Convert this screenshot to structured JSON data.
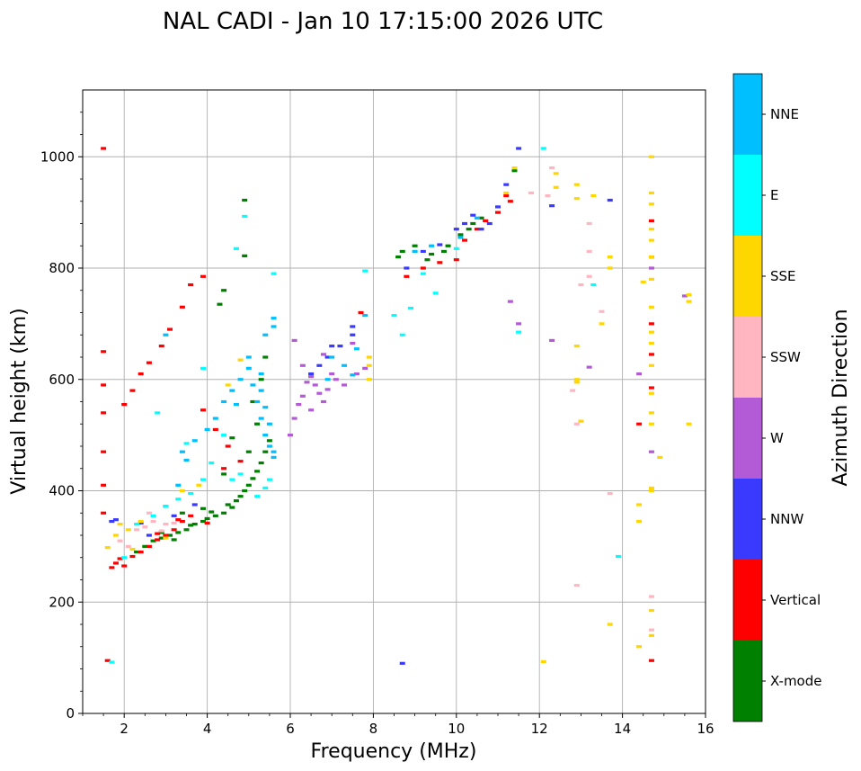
{
  "chart_data": {
    "type": "scatter",
    "title": "NAL CADI - Jan 10 17:15:00 2026 UTC",
    "xlabel": "Frequency (MHz)",
    "ylabel": "Virtual height (km)",
    "xlim": [
      1,
      16
    ],
    "ylim": [
      0,
      1120
    ],
    "xticks": [
      2,
      4,
      6,
      8,
      10,
      12,
      14,
      16
    ],
    "xtick_labels": [
      "2",
      "4",
      "6",
      "8",
      "10",
      "12",
      "14",
      "16"
    ],
    "yticks": [
      0,
      200,
      400,
      600,
      800,
      1000
    ],
    "ytick_labels": [
      "0",
      "200",
      "400",
      "600",
      "800",
      "1000"
    ],
    "grid": true,
    "colorbar": {
      "label": "Azimuth Direction",
      "categories": [
        "X-mode",
        "Vertical",
        "NNW",
        "W",
        "SSW",
        "SSE",
        "E",
        "NNE"
      ],
      "colors": [
        "#008000",
        "#ff0000",
        "#3a3aff",
        "#b35bd6",
        "#ffb6c1",
        "#ffd700",
        "#00ffff",
        "#00bfff"
      ]
    },
    "series": [
      {
        "name": "X-mode",
        "points": [
          [
            2.3,
            290
          ],
          [
            2.5,
            300
          ],
          [
            2.7,
            310
          ],
          [
            2.9,
            315
          ],
          [
            3.1,
            320
          ],
          [
            3.3,
            325
          ],
          [
            3.5,
            330
          ],
          [
            3.6,
            338
          ],
          [
            3.7,
            340
          ],
          [
            3.9,
            345
          ],
          [
            4.0,
            350
          ],
          [
            4.2,
            355
          ],
          [
            4.4,
            360
          ],
          [
            4.5,
            375
          ],
          [
            4.6,
            370
          ],
          [
            4.7,
            382
          ],
          [
            4.8,
            390
          ],
          [
            4.9,
            400
          ],
          [
            5.0,
            410
          ],
          [
            5.1,
            422
          ],
          [
            5.2,
            435
          ],
          [
            5.3,
            450
          ],
          [
            5.4,
            470
          ],
          [
            5.5,
            490
          ],
          [
            5.2,
            520
          ],
          [
            5.1,
            560
          ],
          [
            5.3,
            600
          ],
          [
            5.4,
            640
          ],
          [
            4.3,
            735
          ],
          [
            4.4,
            760
          ],
          [
            4.9,
            822
          ],
          [
            4.9,
            922
          ],
          [
            8.6,
            820
          ],
          [
            8.7,
            830
          ],
          [
            9.0,
            840
          ],
          [
            9.3,
            815
          ],
          [
            9.4,
            825
          ],
          [
            9.7,
            830
          ],
          [
            9.8,
            840
          ],
          [
            10.1,
            860
          ],
          [
            10.3,
            870
          ],
          [
            10.4,
            880
          ],
          [
            10.6,
            890
          ],
          [
            11.4,
            975
          ],
          [
            3.4,
            360
          ],
          [
            3.2,
            312
          ],
          [
            4.6,
            495
          ],
          [
            4.4,
            430
          ],
          [
            2.9,
            325
          ],
          [
            5.0,
            470
          ],
          [
            3.9,
            368
          ],
          [
            4.1,
            362
          ]
        ]
      },
      {
        "name": "Vertical",
        "points": [
          [
            1.5,
            1015
          ],
          [
            1.5,
            650
          ],
          [
            1.5,
            590
          ],
          [
            1.5,
            540
          ],
          [
            1.5,
            470
          ],
          [
            1.5,
            410
          ],
          [
            1.5,
            360
          ],
          [
            1.6,
            95
          ],
          [
            1.7,
            262
          ],
          [
            1.8,
            270
          ],
          [
            1.9,
            278
          ],
          [
            2.0,
            265
          ],
          [
            2.2,
            282
          ],
          [
            2.4,
            290
          ],
          [
            2.6,
            300
          ],
          [
            2.8,
            312
          ],
          [
            3.0,
            320
          ],
          [
            3.2,
            330
          ],
          [
            3.4,
            345
          ],
          [
            3.6,
            355
          ],
          [
            2.0,
            555
          ],
          [
            2.2,
            580
          ],
          [
            2.4,
            610
          ],
          [
            2.6,
            630
          ],
          [
            2.9,
            660
          ],
          [
            3.1,
            690
          ],
          [
            3.4,
            730
          ],
          [
            3.6,
            770
          ],
          [
            3.9,
            785
          ],
          [
            3.9,
            545
          ],
          [
            4.2,
            510
          ],
          [
            4.5,
            480
          ],
          [
            4.4,
            440
          ],
          [
            4.8,
            453
          ],
          [
            7.7,
            720
          ],
          [
            8.8,
            785
          ],
          [
            9.2,
            800
          ],
          [
            9.6,
            810
          ],
          [
            10.0,
            815
          ],
          [
            10.2,
            850
          ],
          [
            10.5,
            870
          ],
          [
            10.7,
            885
          ],
          [
            11.0,
            900
          ],
          [
            11.2,
            930
          ],
          [
            11.3,
            920
          ],
          [
            14.7,
            95
          ],
          [
            14.7,
            885
          ],
          [
            14.7,
            820
          ],
          [
            14.7,
            700
          ],
          [
            14.7,
            645
          ],
          [
            14.7,
            585
          ],
          [
            14.4,
            520
          ],
          [
            3.3,
            348
          ],
          [
            2.8,
            323
          ],
          [
            4.0,
            342
          ]
        ]
      },
      {
        "name": "NNW",
        "points": [
          [
            1.7,
            345
          ],
          [
            1.8,
            348
          ],
          [
            2.4,
            342
          ],
          [
            3.0,
            372
          ],
          [
            3.2,
            355
          ],
          [
            6.5,
            610
          ],
          [
            6.7,
            625
          ],
          [
            6.9,
            640
          ],
          [
            7.0,
            660
          ],
          [
            7.2,
            660
          ],
          [
            7.5,
            680
          ],
          [
            7.5,
            695
          ],
          [
            8.7,
            90
          ],
          [
            8.8,
            800
          ],
          [
            9.2,
            830
          ],
          [
            9.6,
            842
          ],
          [
            10.0,
            870
          ],
          [
            10.2,
            880
          ],
          [
            10.4,
            895
          ],
          [
            10.6,
            870
          ],
          [
            10.8,
            880
          ],
          [
            11.0,
            910
          ],
          [
            11.2,
            950
          ],
          [
            11.5,
            1015
          ],
          [
            12.3,
            912
          ],
          [
            13.7,
            922
          ],
          [
            3.7,
            375
          ],
          [
            2.6,
            320
          ]
        ]
      },
      {
        "name": "W",
        "points": [
          [
            6.0,
            500
          ],
          [
            6.1,
            530
          ],
          [
            6.2,
            555
          ],
          [
            6.3,
            570
          ],
          [
            6.4,
            595
          ],
          [
            6.5,
            605
          ],
          [
            6.6,
            590
          ],
          [
            6.7,
            575
          ],
          [
            6.8,
            560
          ],
          [
            6.9,
            582
          ],
          [
            7.0,
            610
          ],
          [
            7.1,
            600
          ],
          [
            7.3,
            590
          ],
          [
            7.6,
            610
          ],
          [
            7.8,
            620
          ],
          [
            7.5,
            665
          ],
          [
            11.5,
            700
          ],
          [
            11.3,
            740
          ],
          [
            12.3,
            670
          ],
          [
            13.2,
            622
          ],
          [
            14.4,
            610
          ],
          [
            14.7,
            800
          ],
          [
            14.7,
            470
          ],
          [
            15.5,
            750
          ],
          [
            6.1,
            670
          ],
          [
            6.3,
            625
          ],
          [
            6.5,
            545
          ],
          [
            6.8,
            645
          ]
        ]
      },
      {
        "name": "SSW",
        "points": [
          [
            1.9,
            310
          ],
          [
            2.1,
            300
          ],
          [
            2.3,
            330
          ],
          [
            2.5,
            335
          ],
          [
            2.7,
            345
          ],
          [
            2.9,
            328
          ],
          [
            3.2,
            342
          ],
          [
            12.9,
            230
          ],
          [
            13.2,
            880
          ],
          [
            13.2,
            830
          ],
          [
            13.2,
            785
          ],
          [
            13.0,
            770
          ],
          [
            13.5,
            722
          ],
          [
            13.7,
            395
          ],
          [
            14.7,
            150
          ],
          [
            14.7,
            210
          ],
          [
            12.8,
            580
          ],
          [
            12.9,
            520
          ],
          [
            11.8,
            935
          ],
          [
            12.3,
            980
          ],
          [
            12.2,
            930
          ],
          [
            2.6,
            360
          ],
          [
            3.0,
            340
          ]
        ]
      },
      {
        "name": "SSE",
        "points": [
          [
            1.6,
            298
          ],
          [
            1.8,
            320
          ],
          [
            2.1,
            330
          ],
          [
            2.4,
            345
          ],
          [
            3.4,
            400
          ],
          [
            3.8,
            410
          ],
          [
            4.5,
            590
          ],
          [
            4.8,
            635
          ],
          [
            7.9,
            640
          ],
          [
            7.9,
            625
          ],
          [
            7.9,
            600
          ],
          [
            12.1,
            93
          ],
          [
            12.9,
            660
          ],
          [
            12.9,
            600
          ],
          [
            12.9,
            595
          ],
          [
            13.0,
            525
          ],
          [
            13.3,
            930
          ],
          [
            13.5,
            700
          ],
          [
            13.7,
            820
          ],
          [
            13.7,
            800
          ],
          [
            13.7,
            160
          ],
          [
            14.4,
            120
          ],
          [
            14.4,
            345
          ],
          [
            14.4,
            375
          ],
          [
            14.7,
            185
          ],
          [
            14.7,
            140
          ],
          [
            14.7,
            405
          ],
          [
            14.7,
            400
          ],
          [
            14.7,
            520
          ],
          [
            14.7,
            540
          ],
          [
            14.7,
            575
          ],
          [
            14.7,
            625
          ],
          [
            14.7,
            665
          ],
          [
            14.7,
            685
          ],
          [
            14.7,
            730
          ],
          [
            14.7,
            780
          ],
          [
            14.7,
            850
          ],
          [
            14.7,
            870
          ],
          [
            14.7,
            915
          ],
          [
            14.7,
            935
          ],
          [
            14.7,
            1000
          ],
          [
            14.9,
            460
          ],
          [
            15.6,
            520
          ],
          [
            15.6,
            740
          ],
          [
            15.6,
            752
          ],
          [
            11.2,
            935
          ],
          [
            11.4,
            980
          ],
          [
            12.4,
            945
          ],
          [
            12.4,
            970
          ],
          [
            12.9,
            925
          ],
          [
            12.9,
            950
          ],
          [
            14.5,
            775
          ],
          [
            14.7,
            820
          ],
          [
            3.0,
            315
          ],
          [
            2.2,
            295
          ],
          [
            1.9,
            340
          ]
        ]
      },
      {
        "name": "E",
        "points": [
          [
            1.7,
            92
          ],
          [
            2.0,
            280
          ],
          [
            2.3,
            340
          ],
          [
            2.7,
            355
          ],
          [
            3.0,
            372
          ],
          [
            3.3,
            385
          ],
          [
            3.6,
            395
          ],
          [
            3.9,
            420
          ],
          [
            4.1,
            450
          ],
          [
            4.4,
            500
          ],
          [
            4.6,
            420
          ],
          [
            4.8,
            430
          ],
          [
            5.2,
            390
          ],
          [
            5.4,
            405
          ],
          [
            5.5,
            420
          ],
          [
            4.9,
            893
          ],
          [
            5.6,
            790
          ],
          [
            7.8,
            795
          ],
          [
            8.5,
            715
          ],
          [
            8.7,
            680
          ],
          [
            8.9,
            728
          ],
          [
            9.2,
            790
          ],
          [
            9.5,
            755
          ],
          [
            10.0,
            835
          ],
          [
            13.3,
            770
          ],
          [
            13.9,
            282
          ],
          [
            12.1,
            1015
          ],
          [
            11.5,
            685
          ],
          [
            3.5,
            485
          ],
          [
            3.9,
            620
          ],
          [
            4.7,
            835
          ],
          [
            2.8,
            540
          ]
        ]
      },
      {
        "name": "NNE",
        "points": [
          [
            3.4,
            470
          ],
          [
            3.7,
            490
          ],
          [
            4.0,
            510
          ],
          [
            4.2,
            530
          ],
          [
            4.4,
            560
          ],
          [
            4.6,
            580
          ],
          [
            4.8,
            600
          ],
          [
            5.0,
            620
          ],
          [
            5.1,
            590
          ],
          [
            5.2,
            560
          ],
          [
            5.3,
            530
          ],
          [
            5.4,
            500
          ],
          [
            5.5,
            480
          ],
          [
            5.6,
            470
          ],
          [
            5.6,
            460
          ],
          [
            5.5,
            520
          ],
          [
            5.4,
            550
          ],
          [
            5.3,
            580
          ],
          [
            5.3,
            610
          ],
          [
            5.4,
            680
          ],
          [
            5.6,
            710
          ],
          [
            5.6,
            695
          ],
          [
            6.9,
            600
          ],
          [
            7.0,
            640
          ],
          [
            7.3,
            625
          ],
          [
            7.5,
            608
          ],
          [
            7.6,
            655
          ],
          [
            7.8,
            715
          ],
          [
            9.0,
            830
          ],
          [
            9.4,
            840
          ],
          [
            10.1,
            855
          ],
          [
            10.5,
            890
          ],
          [
            3.0,
            680
          ],
          [
            3.5,
            455
          ],
          [
            4.7,
            555
          ],
          [
            5.0,
            640
          ],
          [
            3.3,
            410
          ]
        ]
      }
    ]
  }
}
